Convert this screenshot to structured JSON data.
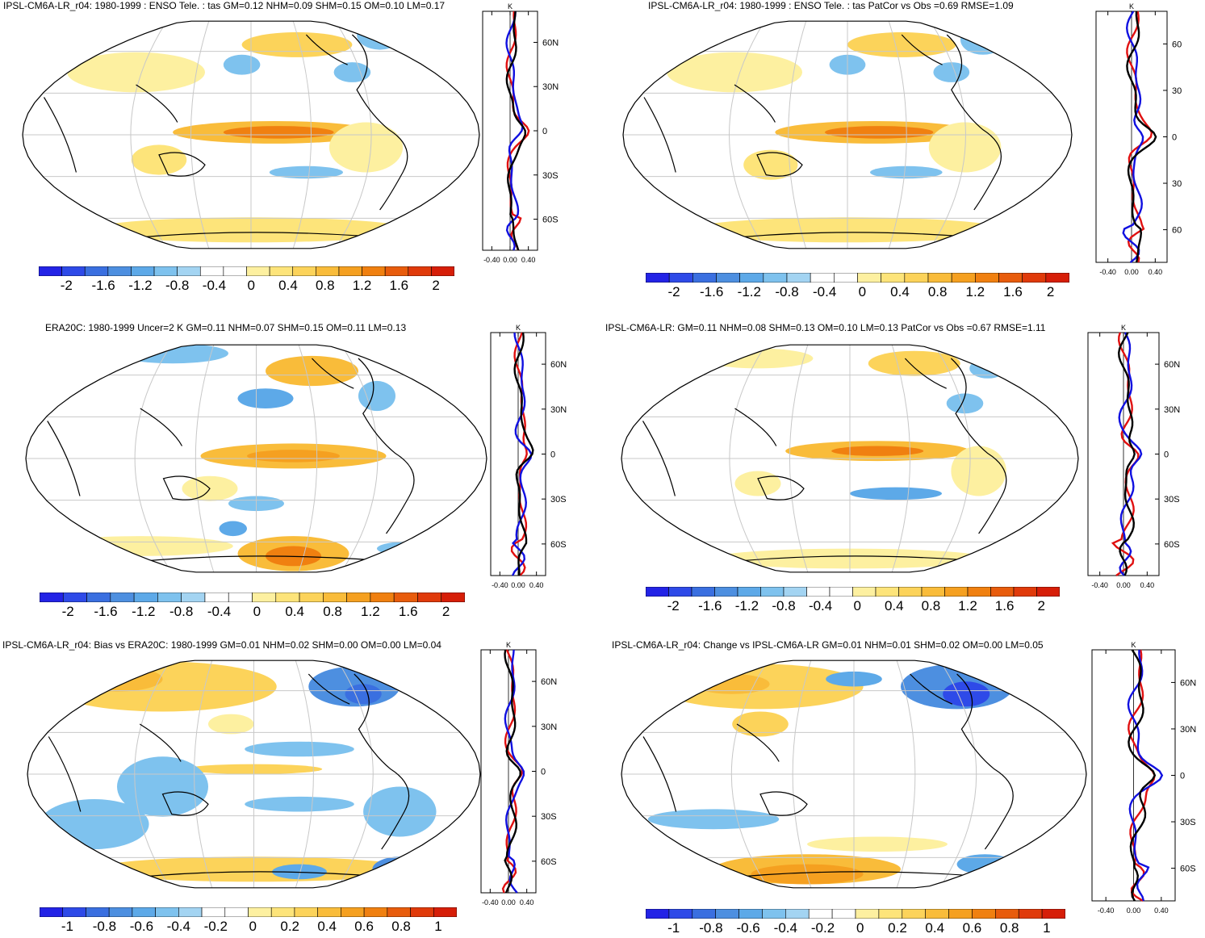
{
  "panels": [
    {
      "id": "p1",
      "title": "IPSL-CM6A-LR_r04: 1980-1999 : ENSO Tele. : tas GM=0.12 NHM=0.09 SHM=0.15 OM=0.10 LM=0.17",
      "lat_labels": [
        "60N",
        "30N",
        "0",
        "30S",
        "60S"
      ],
      "x_ticks": [
        "-0.40",
        "0.00",
        "0.40"
      ],
      "unit": "K",
      "colorbar_labels": [
        "-2",
        "-1.6",
        "-1.2",
        "-0.8",
        "-0.4",
        "0",
        "0.4",
        "0.8",
        "1.2",
        "1.6",
        "2"
      ]
    },
    {
      "id": "p2",
      "title": "IPSL-CM6A-LR_r04: 1980-1999 : ENSO Tele. : tas PatCor vs Obs =0.69 RMSE=1.09",
      "lat_labels": [
        "60",
        "30",
        "0",
        "30",
        "60"
      ],
      "x_ticks": [
        "-0.40",
        "0.00",
        "0.40"
      ],
      "unit": "K",
      "colorbar_labels": [
        "-2",
        "-1.6",
        "-1.2",
        "-0.8",
        "-0.4",
        "0",
        "0.4",
        "0.8",
        "1.2",
        "1.6",
        "2"
      ]
    },
    {
      "id": "p3",
      "title": "ERA20C: 1980-1999 Uncer=2 K GM=0.11 NHM=0.07 SHM=0.15 OM=0.11 LM=0.13",
      "lat_labels": [
        "60N",
        "30N",
        "0",
        "30S",
        "60S"
      ],
      "x_ticks": [
        "-0.40",
        "0.00",
        "0.40"
      ],
      "unit": "K",
      "colorbar_labels": [
        "-2",
        "-1.6",
        "-1.2",
        "-0.8",
        "-0.4",
        "0",
        "0.4",
        "0.8",
        "1.2",
        "1.6",
        "2"
      ]
    },
    {
      "id": "p4",
      "title": "IPSL-CM6A-LR: GM=0.11 NHM=0.08 SHM=0.13 OM=0.10 LM=0.13 PatCor vs Obs =0.67 RMSE=1.11",
      "lat_labels": [
        "60N",
        "30N",
        "0",
        "30S",
        "60S"
      ],
      "x_ticks": [
        "-0.40",
        "0.00",
        "0.40"
      ],
      "unit": "K",
      "colorbar_labels": [
        "-2",
        "-1.6",
        "-1.2",
        "-0.8",
        "-0.4",
        "0",
        "0.4",
        "0.8",
        "1.2",
        "1.6",
        "2"
      ]
    },
    {
      "id": "p5",
      "title": "IPSL-CM6A-LR_r04: Bias vs ERA20C: 1980-1999 GM=0.01 NHM=0.02 SHM=0.00 OM=0.00 LM=0.04",
      "lat_labels": [
        "60N",
        "30N",
        "0",
        "30S",
        "60S"
      ],
      "x_ticks": [
        "-0.40",
        "0.00",
        "0.40"
      ],
      "unit": "K",
      "colorbar_labels": [
        "-1",
        "-0.8",
        "-0.6",
        "-0.4",
        "-0.2",
        "0",
        "0.2",
        "0.4",
        "0.6",
        "0.8",
        "1"
      ]
    },
    {
      "id": "p6",
      "title": "IPSL-CM6A-LR_r04: Change vs IPSL-CM6A-LR GM=0.01 NHM=0.01 SHM=0.02 OM=0.00 LM=0.05",
      "lat_labels": [
        "60N",
        "30N",
        "0",
        "30S",
        "60S"
      ],
      "x_ticks": [
        "-0.40",
        "0.00",
        "0.40"
      ],
      "unit": "K",
      "colorbar_labels": [
        "-1",
        "-0.8",
        "-0.6",
        "-0.4",
        "-0.2",
        "0",
        "0.2",
        "0.4",
        "0.6",
        "0.8",
        "1"
      ]
    }
  ],
  "colors": {
    "scale": [
      "#2323e6",
      "#2e4ae8",
      "#3a6fe0",
      "#4d8fe0",
      "#5da9e8",
      "#7ec2ee",
      "#a3d4f2",
      "#ffffff",
      "#ffffff",
      "#fdf0a0",
      "#fde47a",
      "#fcd35a",
      "#f9bc3a",
      "#f5a020",
      "#f08010",
      "#e85c0c",
      "#e03a0a",
      "#d61e08"
    ],
    "nh": "#e01010",
    "sh": "#1010e0",
    "all": "#000000",
    "grid": "#c8c8c8",
    "coast": "#000000"
  }
}
